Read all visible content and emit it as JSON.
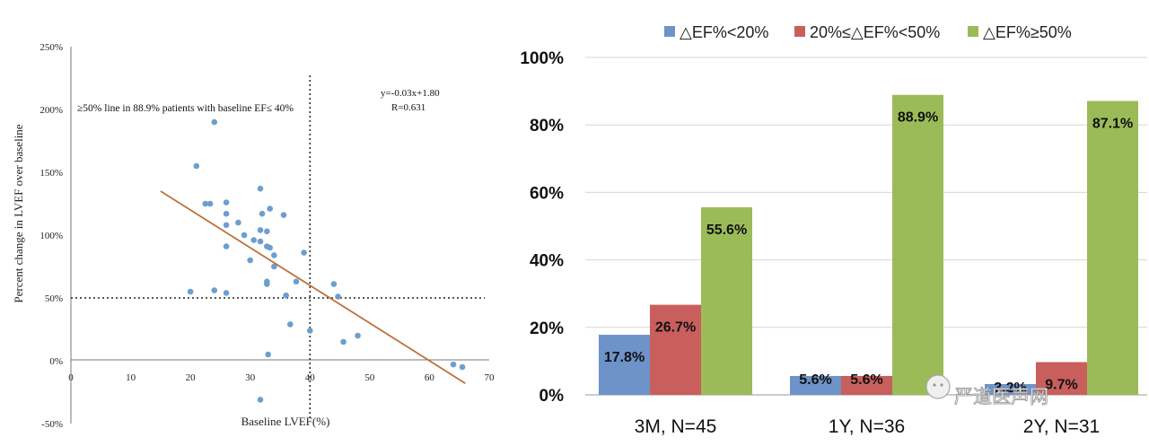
{
  "chart_data": [
    {
      "type": "scatter",
      "ylabel": "Percent change in LVEF over baseline",
      "xlabel": "Baseline LVEF(%)",
      "x_ticks": [
        "0",
        "10",
        "20",
        "30",
        "40",
        "50",
        "60",
        "70"
      ],
      "y_ticks": [
        "-50%",
        "0%",
        "50%",
        "100%",
        "150%",
        "200%",
        "250%"
      ],
      "xlim": [
        0,
        70
      ],
      "ylim": [
        -50,
        250
      ],
      "annotation": "≥50% line in 88.9% patients with baseline EF≤ 40%",
      "equation": "y=-0.03x+1.80",
      "r_value": "R=0.631",
      "reference_lines": {
        "vertical_x": 40,
        "horizontal_y": 50
      },
      "trendline": {
        "x": [
          15,
          66
        ],
        "y": [
          135,
          -18
        ],
        "color": "#c0703a"
      },
      "point_color": "#6d9ecf",
      "points": [
        {
          "x": 24,
          "y": 190
        },
        {
          "x": 21,
          "y": 155
        },
        {
          "x": 22.5,
          "y": 125
        },
        {
          "x": 23.3,
          "y": 125
        },
        {
          "x": 26,
          "y": 126
        },
        {
          "x": 26,
          "y": 117
        },
        {
          "x": 31.7,
          "y": 137
        },
        {
          "x": 32,
          "y": 117
        },
        {
          "x": 33.3,
          "y": 121
        },
        {
          "x": 35.6,
          "y": 116
        },
        {
          "x": 26,
          "y": 108
        },
        {
          "x": 28,
          "y": 110
        },
        {
          "x": 29,
          "y": 100
        },
        {
          "x": 30.6,
          "y": 96
        },
        {
          "x": 31.7,
          "y": 104
        },
        {
          "x": 32.8,
          "y": 103
        },
        {
          "x": 31.7,
          "y": 95
        },
        {
          "x": 32.8,
          "y": 91
        },
        {
          "x": 33.3,
          "y": 90
        },
        {
          "x": 26,
          "y": 91
        },
        {
          "x": 30,
          "y": 80
        },
        {
          "x": 34,
          "y": 84
        },
        {
          "x": 34,
          "y": 75
        },
        {
          "x": 39,
          "y": 86
        },
        {
          "x": 32.8,
          "y": 63
        },
        {
          "x": 32.8,
          "y": 61
        },
        {
          "x": 37.7,
          "y": 63
        },
        {
          "x": 36,
          "y": 52
        },
        {
          "x": 20,
          "y": 55
        },
        {
          "x": 24,
          "y": 56
        },
        {
          "x": 26,
          "y": 54
        },
        {
          "x": 44,
          "y": 61
        },
        {
          "x": 44.7,
          "y": 51
        },
        {
          "x": 36.7,
          "y": 29
        },
        {
          "x": 40,
          "y": 24
        },
        {
          "x": 48,
          "y": 20
        },
        {
          "x": 45.6,
          "y": 15
        },
        {
          "x": 33,
          "y": 5
        },
        {
          "x": 31.7,
          "y": -31
        },
        {
          "x": 64,
          "y": -3
        },
        {
          "x": 65.5,
          "y": -5
        }
      ]
    },
    {
      "type": "bar",
      "categories": [
        "3M, N=45",
        "1Y, N=36",
        "2Y, N=31"
      ],
      "y_ticks": [
        "0%",
        "20%",
        "40%",
        "60%",
        "80%",
        "100%"
      ],
      "ylim": [
        0,
        100
      ],
      "series": [
        {
          "name": "△EF%<20%",
          "color": "#6d93c9",
          "values": [
            17.8,
            5.6,
            3.2
          ],
          "labels": [
            "17.8%",
            "5.6%",
            "3.2%"
          ]
        },
        {
          "name": "20%≤△EF%<50%",
          "color": "#c95f5c",
          "values": [
            26.7,
            5.6,
            9.7
          ],
          "labels": [
            "26.7%",
            "5.6%",
            "9.7%"
          ]
        },
        {
          "name": "△EF%≥50%",
          "color": "#9bbb59",
          "values": [
            55.6,
            88.9,
            87.1
          ],
          "labels": [
            "55.6%",
            "88.9%",
            "87.1%"
          ]
        }
      ]
    }
  ],
  "watermark": "严道医声网"
}
